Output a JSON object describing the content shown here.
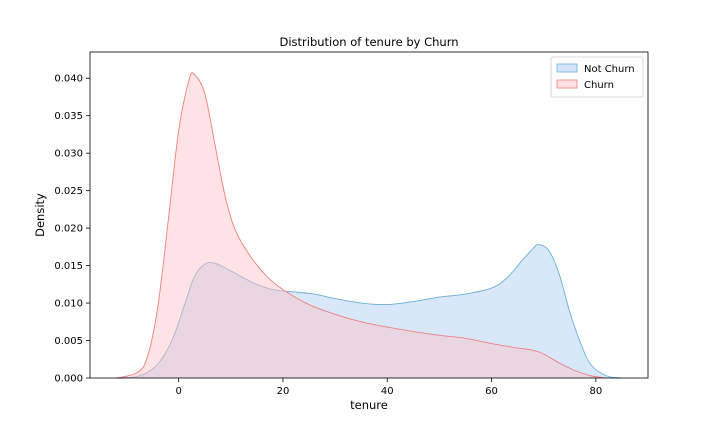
{
  "chart_data": {
    "type": "area",
    "title": "Distribution of tenure by Churn",
    "xlabel": "tenure",
    "ylabel": "Density",
    "xlim": [
      -17,
      90
    ],
    "ylim": [
      0,
      0.0435
    ],
    "xticks": [
      0,
      20,
      40,
      60,
      80
    ],
    "xtick_labels": [
      "0",
      "20",
      "40",
      "60",
      "80"
    ],
    "yticks": [
      0,
      0.005,
      0.01,
      0.015,
      0.02,
      0.025,
      0.03,
      0.035,
      0.04
    ],
    "ytick_labels": [
      "0.000",
      "0.005",
      "0.010",
      "0.015",
      "0.020",
      "0.025",
      "0.030",
      "0.035",
      "0.040"
    ],
    "grid": false,
    "legend_position": "top-right",
    "series": [
      {
        "name": "Not Churn",
        "color": "#a8cdf5",
        "edge_color": "#6baed6",
        "points": [
          [
            -12,
            0.0
          ],
          [
            -8,
            0.0002
          ],
          [
            -5,
            0.0012
          ],
          [
            -3,
            0.0028
          ],
          [
            -1,
            0.0055
          ],
          [
            1,
            0.0095
          ],
          [
            3,
            0.0135
          ],
          [
            5,
            0.0152
          ],
          [
            7,
            0.0153
          ],
          [
            10,
            0.0143
          ],
          [
            14,
            0.0128
          ],
          [
            18,
            0.0118
          ],
          [
            22,
            0.0115
          ],
          [
            26,
            0.0112
          ],
          [
            30,
            0.0106
          ],
          [
            35,
            0.01
          ],
          [
            40,
            0.0098
          ],
          [
            45,
            0.0102
          ],
          [
            50,
            0.0108
          ],
          [
            55,
            0.0112
          ],
          [
            60,
            0.012
          ],
          [
            63,
            0.0134
          ],
          [
            66,
            0.0158
          ],
          [
            68,
            0.0173
          ],
          [
            69,
            0.0178
          ],
          [
            71,
            0.017
          ],
          [
            73,
            0.0138
          ],
          [
            75,
            0.0088
          ],
          [
            77,
            0.0048
          ],
          [
            79,
            0.0018
          ],
          [
            82,
            0.0003
          ],
          [
            85,
            0.0
          ]
        ]
      },
      {
        "name": "Churn",
        "color": "#ffc0c5",
        "edge_color": "#f08080",
        "points": [
          [
            -12,
            0.0
          ],
          [
            -8,
            0.0007
          ],
          [
            -6,
            0.0028
          ],
          [
            -4,
            0.0095
          ],
          [
            -2,
            0.021
          ],
          [
            0,
            0.033
          ],
          [
            2,
            0.0398
          ],
          [
            3,
            0.0405
          ],
          [
            5,
            0.038
          ],
          [
            7,
            0.031
          ],
          [
            9,
            0.024
          ],
          [
            11,
            0.0195
          ],
          [
            14,
            0.016
          ],
          [
            17,
            0.0135
          ],
          [
            20,
            0.0118
          ],
          [
            25,
            0.0098
          ],
          [
            30,
            0.0085
          ],
          [
            35,
            0.0075
          ],
          [
            40,
            0.0068
          ],
          [
            45,
            0.0062
          ],
          [
            50,
            0.0057
          ],
          [
            55,
            0.0053
          ],
          [
            60,
            0.0046
          ],
          [
            65,
            0.004
          ],
          [
            68,
            0.0037
          ],
          [
            70,
            0.0032
          ],
          [
            73,
            0.002
          ],
          [
            76,
            0.001
          ],
          [
            79,
            0.0003
          ],
          [
            82,
            0.0
          ]
        ]
      }
    ]
  }
}
